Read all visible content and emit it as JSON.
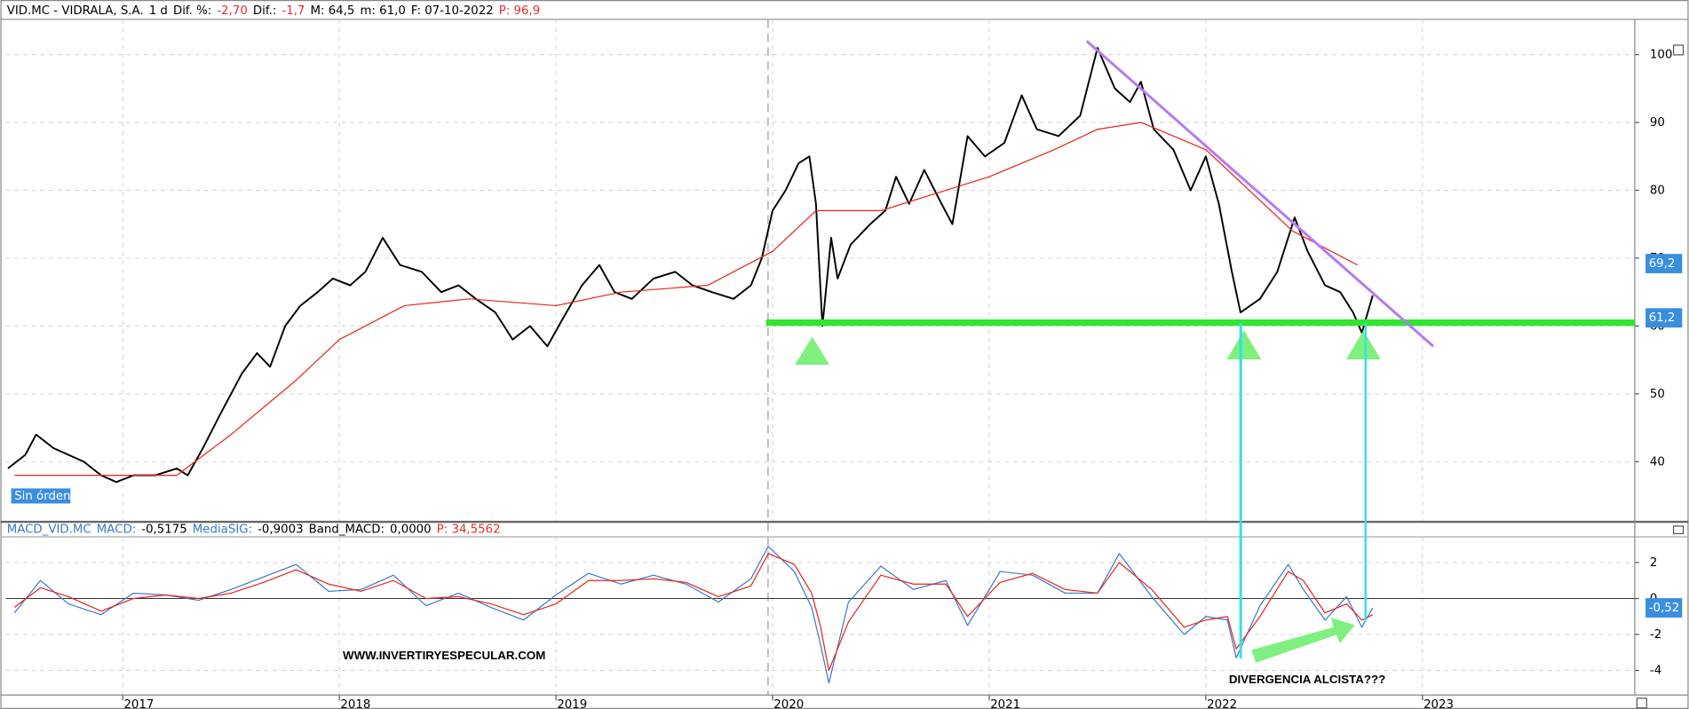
{
  "chart_data": [
    {
      "type": "line",
      "header": [
        {
          "text": "VID.MC - VIDRALA, S.A.",
          "color": "#000000"
        },
        {
          "text": "1 d",
          "color": "#000000"
        },
        {
          "text": "Dif. %:",
          "color": "#000000"
        },
        {
          "text": "-2,70",
          "color": "#e03030"
        },
        {
          "text": "Dif.:",
          "color": "#000000"
        },
        {
          "text": "-1,7",
          "color": "#e03030"
        },
        {
          "text": "M: 64,5",
          "color": "#000000"
        },
        {
          "text": "m: 61,0",
          "color": "#000000"
        },
        {
          "text": "F: 07-10-2022",
          "color": "#000000"
        },
        {
          "text": "P: 96,9",
          "color": "#e03030"
        }
      ],
      "status": "Sin órdenes",
      "xlim": [
        2016.46,
        2023.98
      ],
      "xticks": [
        2017,
        2018,
        2019,
        2020,
        2021,
        2022,
        2023
      ],
      "ylim": [
        31.3,
        105.2
      ],
      "yticks": [
        40,
        50,
        60,
        70,
        80,
        90,
        100
      ],
      "grid": true,
      "series": [
        {
          "color": "#000000",
          "x": [
            2016.47,
            2016.55,
            2016.6,
            2016.68,
            2016.75,
            2016.82,
            2016.9,
            2016.97,
            2017.05,
            2017.15,
            2017.25,
            2017.3,
            2017.37,
            2017.45,
            2017.55,
            2017.62,
            2017.68,
            2017.75,
            2017.82,
            2017.9,
            2017.97,
            2018.05,
            2018.12,
            2018.2,
            2018.28,
            2018.38,
            2018.47,
            2018.55,
            2018.63,
            2018.72,
            2018.8,
            2018.88,
            2018.96,
            2019.03,
            2019.12,
            2019.2,
            2019.27,
            2019.35,
            2019.45,
            2019.55,
            2019.63,
            2019.72,
            2019.82,
            2019.9,
            2019.95,
            2020.0,
            2020.06,
            2020.12,
            2020.17,
            2020.2,
            2020.23,
            2020.27,
            2020.3,
            2020.36,
            2020.45,
            2020.52,
            2020.57,
            2020.63,
            2020.7,
            2020.78,
            2020.83,
            2020.9,
            2020.98,
            2021.07,
            2021.15,
            2021.22,
            2021.32,
            2021.42,
            2021.5,
            2021.58,
            2021.65,
            2021.7,
            2021.76,
            2021.85,
            2021.93,
            2022.0,
            2022.06,
            2022.12,
            2022.16,
            2022.25,
            2022.33,
            2022.41,
            2022.47,
            2022.55,
            2022.62,
            2022.68,
            2022.72,
            2022.77
          ],
          "values": [
            39,
            41,
            44,
            42,
            41,
            40,
            38,
            37,
            38,
            38,
            39,
            38,
            42,
            47,
            53,
            56,
            54,
            60,
            63,
            65,
            67,
            66,
            68,
            73,
            69,
            68,
            65,
            66,
            64,
            62,
            58,
            60,
            57,
            61,
            66,
            69,
            65,
            64,
            67,
            68,
            66,
            65,
            64,
            66,
            70,
            77,
            80,
            84,
            85,
            78,
            60,
            73,
            67,
            72,
            75,
            77,
            82,
            78,
            83,
            78,
            75,
            88,
            85,
            87,
            94,
            89,
            88,
            91,
            101,
            95,
            93,
            96,
            89,
            86,
            80,
            85,
            78,
            68,
            62,
            64,
            68,
            76,
            71,
            66,
            65,
            62,
            59,
            64.5
          ],
          "width": 1.6
        },
        {
          "color": "#e8241c",
          "x": [
            2016.5,
            2017.0,
            2017.25,
            2017.5,
            2017.8,
            2018.0,
            2018.3,
            2018.6,
            2019.0,
            2019.3,
            2019.7,
            2020.0,
            2020.2,
            2020.5,
            2020.8,
            2021.0,
            2021.3,
            2021.5,
            2021.7,
            2022.0,
            2022.2,
            2022.4,
            2022.7
          ],
          "values": [
            38,
            38,
            38,
            44,
            52,
            58,
            63,
            64,
            63,
            65,
            66,
            71,
            77,
            77,
            80,
            82,
            86,
            89,
            90,
            86,
            80,
            74,
            69
          ],
          "width": 1
        },
        {
          "color": "#2ee62e",
          "x": [
            2019.97,
            2023.98
          ],
          "values": [
            60.5,
            60.5
          ],
          "width": 6
        },
        {
          "color": "#b57cf0",
          "x": [
            2021.45,
            2023.05
          ],
          "values": [
            102,
            57
          ],
          "width": 2.5
        }
      ],
      "price_badges": [
        {
          "value": 69.2,
          "label": "69,2"
        },
        {
          "value": 61.2,
          "label": "61,2"
        }
      ]
    },
    {
      "type": "line",
      "header": [
        {
          "text": "MACD_VID.MC",
          "color": "#3a78c8"
        },
        {
          "text": "MACD:",
          "color": "#3a78c8"
        },
        {
          "text": "-0,5175",
          "color": "#000000"
        },
        {
          "text": "MediaSIG:",
          "color": "#3a78c8"
        },
        {
          "text": "-0,9003",
          "color": "#000000"
        },
        {
          "text": "Band_MACD:",
          "color": "#000000"
        },
        {
          "text": "0,0000",
          "color": "#000000"
        },
        {
          "text": "P: 34,5562",
          "color": "#e03030"
        }
      ],
      "watermark": "WWW.INVERTIRYESPECULAR.COM",
      "annotation": "DIVERGENCIA ALCISTA???",
      "xlim": [
        2016.46,
        2023.98
      ],
      "xticks": [
        2017,
        2018,
        2019,
        2020,
        2021,
        2022,
        2023
      ],
      "ylim": [
        -5.31,
        3.43
      ],
      "yticks": [
        -4,
        -2,
        0,
        2
      ],
      "grid": true,
      "x": [
        2016.5,
        2016.62,
        2016.75,
        2016.9,
        2017.05,
        2017.2,
        2017.35,
        2017.5,
        2017.65,
        2017.8,
        2017.95,
        2018.1,
        2018.25,
        2018.4,
        2018.55,
        2018.7,
        2018.85,
        2019.0,
        2019.15,
        2019.3,
        2019.45,
        2019.6,
        2019.75,
        2019.9,
        2019.98,
        2020.1,
        2020.18,
        2020.22,
        2020.26,
        2020.35,
        2020.5,
        2020.65,
        2020.8,
        2020.9,
        2021.05,
        2021.2,
        2021.35,
        2021.5,
        2021.6,
        2021.75,
        2021.9,
        2022.0,
        2022.1,
        2022.14,
        2022.25,
        2022.38,
        2022.45,
        2022.55,
        2022.65,
        2022.72,
        2022.77
      ],
      "series": [
        {
          "color": "#3a78c8",
          "values": [
            -0.8,
            1.0,
            -0.3,
            -0.9,
            0.3,
            0.2,
            -0.1,
            0.5,
            1.2,
            1.9,
            0.4,
            0.5,
            1.3,
            -0.4,
            0.3,
            -0.5,
            -1.2,
            0.2,
            1.4,
            0.8,
            1.3,
            0.8,
            -0.2,
            1.1,
            2.9,
            1.5,
            -0.5,
            -2.5,
            -4.7,
            -0.2,
            1.8,
            0.5,
            1.0,
            -1.5,
            1.5,
            1.3,
            0.3,
            0.3,
            2.5,
            0.1,
            -2.0,
            -1.0,
            -1.2,
            -3.3,
            -0.4,
            1.9,
            0.5,
            -1.2,
            0.1,
            -1.6,
            -0.52
          ]
        },
        {
          "color": "#e8241c",
          "values": [
            -0.5,
            0.6,
            0.1,
            -0.7,
            0.0,
            0.2,
            0.0,
            0.3,
            0.9,
            1.6,
            0.8,
            0.4,
            1.0,
            0.0,
            0.1,
            -0.3,
            -0.9,
            -0.3,
            1.0,
            1.0,
            1.1,
            0.9,
            0.1,
            0.7,
            2.5,
            1.9,
            0.3,
            -1.5,
            -4.0,
            -1.3,
            1.3,
            0.8,
            0.8,
            -1.0,
            0.9,
            1.4,
            0.5,
            0.3,
            2.0,
            0.5,
            -1.6,
            -1.2,
            -1.0,
            -2.8,
            -1.0,
            1.5,
            1.0,
            -0.8,
            -0.3,
            -1.2,
            -0.9
          ]
        }
      ],
      "price_badges": [
        {
          "value": -0.52,
          "label": "-0,52"
        }
      ]
    }
  ]
}
